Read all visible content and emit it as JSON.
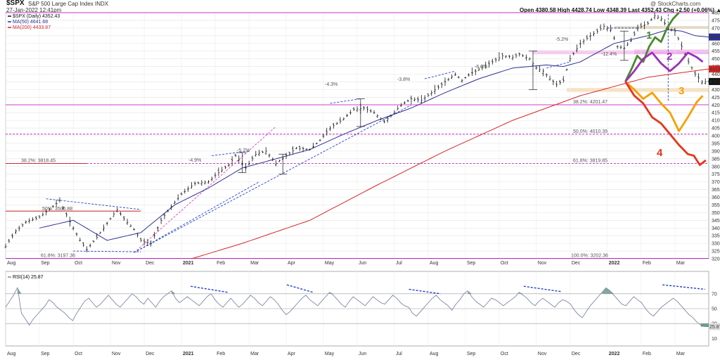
{
  "header": {
    "symbol": "$SPX",
    "name": "S&P 500 Large Cap Index  INDX",
    "date": "27-Jan-2022 12:41pm",
    "ohlc": "Open 4380.58   High 4428.74   Low 4348.39   Last 4352.43   Chg +2.50 (+0.06%) ▲",
    "credit": "@ StockCharts.com"
  },
  "legend": {
    "price": "$SPX (Daily) 4352.43",
    "ma50": "MA(50) 4641.68",
    "ma200": "MA(200) 4433.87",
    "rsi": "RSI(14) 25.87"
  },
  "colors": {
    "price": "#111111",
    "ma50": "#2e3192",
    "ma200": "#d62728",
    "magenta": "#c000c0",
    "blue_dash": "#1f3fd1",
    "pink_dash": "#e040c0",
    "path1": "#4a8a2a",
    "path2": "#9b30b8",
    "path3": "#f5a000",
    "path4": "#e8331a",
    "rsi_line": "#7e88a8",
    "rsi_fill": "#4a8a6a",
    "pink_zone": "#f0a0e8",
    "tan_zone": "#f6d6a8"
  },
  "chart_data": {
    "type": "line",
    "months": [
      "Aug",
      "Sep",
      "Oct",
      "Nov",
      "Dec",
      "2021",
      "Feb",
      "Mar",
      "Apr",
      "May",
      "Jun",
      "Jul",
      "Aug",
      "Sep",
      "Oct",
      "Nov",
      "Dec",
      "2022",
      "Feb",
      "Mar"
    ],
    "ylim": [
      3200,
      4800
    ],
    "yticks": [
      "4800",
      "4750",
      "4700",
      "4650",
      "4600",
      "4550",
      "4500",
      "4450",
      "4400",
      "4350",
      "4300",
      "4250",
      "4200",
      "4150",
      "4100",
      "4050",
      "4000",
      "3950",
      "3900",
      "3850",
      "3800",
      "3750",
      "3700",
      "3650",
      "3600",
      "3550",
      "3500",
      "3450",
      "3400",
      "3350",
      "3300",
      "3250",
      "3200"
    ],
    "price_anchors": [
      [
        0,
        3280
      ],
      [
        3,
        3380
      ],
      [
        6,
        3440
      ],
      [
        10,
        3470
      ],
      [
        14,
        3540
      ],
      [
        16,
        3580
      ],
      [
        19,
        3440
      ],
      [
        22,
        3320
      ],
      [
        24,
        3260
      ],
      [
        27,
        3340
      ],
      [
        30,
        3430
      ],
      [
        33,
        3520
      ],
      [
        35,
        3460
      ],
      [
        38,
        3390
      ],
      [
        40,
        3320
      ],
      [
        43,
        3300
      ],
      [
        46,
        3450
      ],
      [
        49,
        3540
      ],
      [
        52,
        3620
      ],
      [
        56,
        3690
      ],
      [
        60,
        3700
      ],
      [
        63,
        3760
      ],
      [
        66,
        3810
      ],
      [
        68,
        3870
      ],
      [
        71,
        3790
      ],
      [
        74,
        3880
      ],
      [
        77,
        3900
      ],
      [
        80,
        3820
      ],
      [
        83,
        3870
      ],
      [
        86,
        3920
      ],
      [
        90,
        3910
      ],
      [
        93,
        3970
      ],
      [
        96,
        4050
      ],
      [
        100,
        4110
      ],
      [
        103,
        4170
      ],
      [
        106,
        4180
      ],
      [
        109,
        4150
      ],
      [
        112,
        4090
      ],
      [
        114,
        4130
      ],
      [
        117,
        4200
      ],
      [
        120,
        4240
      ],
      [
        123,
        4230
      ],
      [
        126,
        4280
      ],
      [
        130,
        4350
      ],
      [
        133,
        4400
      ],
      [
        135,
        4360
      ],
      [
        138,
        4410
      ],
      [
        141,
        4440
      ],
      [
        144,
        4480
      ],
      [
        147,
        4520
      ],
      [
        150,
        4510
      ],
      [
        152,
        4530
      ],
      [
        155,
        4500
      ],
      [
        157,
        4440
      ],
      [
        159,
        4420
      ],
      [
        161,
        4370
      ],
      [
        163,
        4330
      ],
      [
        165,
        4360
      ],
      [
        167,
        4500
      ],
      [
        170,
        4600
      ],
      [
        173,
        4650
      ],
      [
        175,
        4680
      ],
      [
        177,
        4710
      ],
      [
        179,
        4690
      ],
      [
        181,
        4580
      ],
      [
        183,
        4570
      ],
      [
        185,
        4620
      ],
      [
        187,
        4700
      ],
      [
        190,
        4730
      ],
      [
        192,
        4780
      ],
      [
        194,
        4760
      ],
      [
        196,
        4700
      ],
      [
        198,
        4680
      ],
      [
        200,
        4580
      ],
      [
        202,
        4480
      ],
      [
        204,
        4400
      ],
      [
        206,
        4350
      ],
      [
        208,
        4352
      ]
    ],
    "ma50_anchors": [
      [
        10,
        3400
      ],
      [
        20,
        3450
      ],
      [
        30,
        3320
      ],
      [
        40,
        3370
      ],
      [
        50,
        3550
      ],
      [
        60,
        3660
      ],
      [
        70,
        3790
      ],
      [
        80,
        3850
      ],
      [
        90,
        3910
      ],
      [
        100,
        4010
      ],
      [
        110,
        4100
      ],
      [
        120,
        4180
      ],
      [
        130,
        4280
      ],
      [
        140,
        4370
      ],
      [
        150,
        4440
      ],
      [
        160,
        4460
      ],
      [
        165,
        4450
      ],
      [
        170,
        4480
      ],
      [
        180,
        4600
      ],
      [
        190,
        4650
      ],
      [
        196,
        4690
      ],
      [
        200,
        4680
      ],
      [
        204,
        4650
      ],
      [
        208,
        4641
      ]
    ],
    "ma200_anchors": [
      [
        55,
        3200
      ],
      [
        70,
        3300
      ],
      [
        90,
        3450
      ],
      [
        110,
        3680
      ],
      [
        130,
        3900
      ],
      [
        150,
        4100
      ],
      [
        170,
        4260
      ],
      [
        190,
        4380
      ],
      [
        200,
        4410
      ],
      [
        208,
        4434
      ]
    ],
    "rsi_ylim": [
      0,
      100
    ],
    "rsi_ticks": [
      "70",
      "50",
      "30",
      "10"
    ],
    "rsi_values": [
      52,
      60,
      68,
      78,
      44,
      36,
      28,
      36,
      42,
      48,
      54,
      62,
      58,
      52,
      48,
      44,
      38,
      34,
      44,
      52,
      60,
      64,
      58,
      52,
      56,
      62,
      68,
      62,
      56,
      52,
      58,
      64,
      70,
      66,
      60,
      56,
      64,
      58,
      52,
      60,
      66,
      70,
      74,
      64,
      58,
      62,
      66,
      62,
      58,
      54,
      60,
      66,
      70,
      62,
      56,
      52,
      58,
      64,
      58,
      52,
      56,
      62,
      68,
      64,
      58,
      54,
      60,
      66,
      62,
      56,
      48,
      42,
      46,
      52,
      58,
      64,
      68,
      62,
      58,
      54,
      60,
      66,
      72,
      68,
      62,
      56,
      52,
      60,
      66,
      62,
      58,
      54,
      60,
      66,
      62,
      58,
      56,
      62,
      68,
      64,
      58,
      54,
      52,
      44,
      40,
      46,
      52,
      58,
      64,
      68,
      62,
      58,
      54,
      48,
      56,
      62,
      70,
      74,
      66,
      60,
      56,
      52,
      58,
      64,
      62,
      58,
      54,
      58,
      62,
      66,
      72,
      68,
      64,
      58,
      54,
      60,
      64,
      60,
      56,
      52,
      58,
      62,
      60,
      56,
      48,
      42,
      38,
      46,
      54,
      60,
      66,
      72,
      78,
      74,
      68,
      62,
      56,
      54,
      60,
      66,
      62,
      58,
      50,
      44,
      40,
      46,
      52,
      56,
      60,
      64,
      60,
      54,
      48,
      42,
      38,
      32,
      28,
      26,
      25.87
    ],
    "annotations": {
      "fib_382_a": "38.2%: 3818.45",
      "fib_618_a": "61.8%: 3197.36",
      "fib_50_a": "50%: 3506.88",
      "fib_382_b": "38.2%: 4201.47",
      "fib_50_b": "50.0%: 4010.39",
      "fib_618_b": "61.8%: 3819.85",
      "fib_100": "100.0%: 3202.36",
      "pct_49": "-4.9%",
      "pct_57": "-5.7%",
      "pct_43": "-4.3%",
      "pct_38": "-3.8%",
      "pct_60": "-6.0%",
      "pct_52": "-5.2%",
      "pct_124": "-12.4%"
    },
    "scenario_labels": [
      "1",
      "2",
      "3",
      "4"
    ],
    "right_tags": {
      "ma50": "4641.68",
      "ma200": "4433.87",
      "last": "4352.43",
      "rsi": "25.87"
    }
  }
}
